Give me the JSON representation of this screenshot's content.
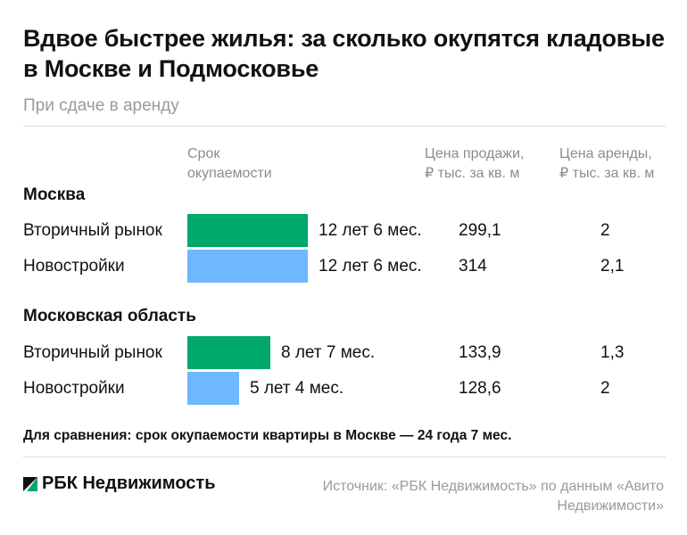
{
  "title": "Вдвое быстрее жилья: за сколько окупятся кладовые в Москве и Подмосковье",
  "subtitle": "При сдаче в аренду",
  "columns": {
    "payback_line1": "Срок",
    "payback_line2": "окупаемости",
    "price_line1": "Цена продажи,",
    "price_line2": "₽ тыс. за кв. м",
    "rent_line1": "Цена аренды,",
    "rent_line2": "₽ тыс. за кв. м"
  },
  "colors": {
    "secondary_market": "#00a86b",
    "new_buildings": "#6db8ff"
  },
  "chart_data": {
    "type": "bar",
    "orientation": "horizontal",
    "groups": [
      {
        "name": "Москва",
        "rows": [
          {
            "label": "Вторичный рынок",
            "payback_months": 150,
            "payback_label": "12 лет 6 мес.",
            "sale_price": "299,1",
            "rent_price": "2",
            "color": "#00a86b"
          },
          {
            "label": "Новостройки",
            "payback_months": 150,
            "payback_label": "12 лет 6 мес.",
            "sale_price": "314",
            "rent_price": "2,1",
            "color": "#6db8ff"
          }
        ]
      },
      {
        "name": "Московская область",
        "rows": [
          {
            "label": "Вторичный рынок",
            "payback_months": 103,
            "payback_label": "8 лет 7 мес.",
            "sale_price": "133,9",
            "rent_price": "1,3",
            "color": "#00a86b"
          },
          {
            "label": "Новостройки",
            "payback_months": 64,
            "payback_label": "5 лет 4 мес.",
            "sale_price": "128,6",
            "rent_price": "2",
            "color": "#6db8ff"
          }
        ]
      }
    ]
  },
  "note": "Для сравнения: срок окупаемости квартиры в Москве — 24 года 7 мес.",
  "logo": "РБК Недвижимость",
  "source": "Источник: «РБК Недвижимость» по данным «Авито Недвижимости»"
}
